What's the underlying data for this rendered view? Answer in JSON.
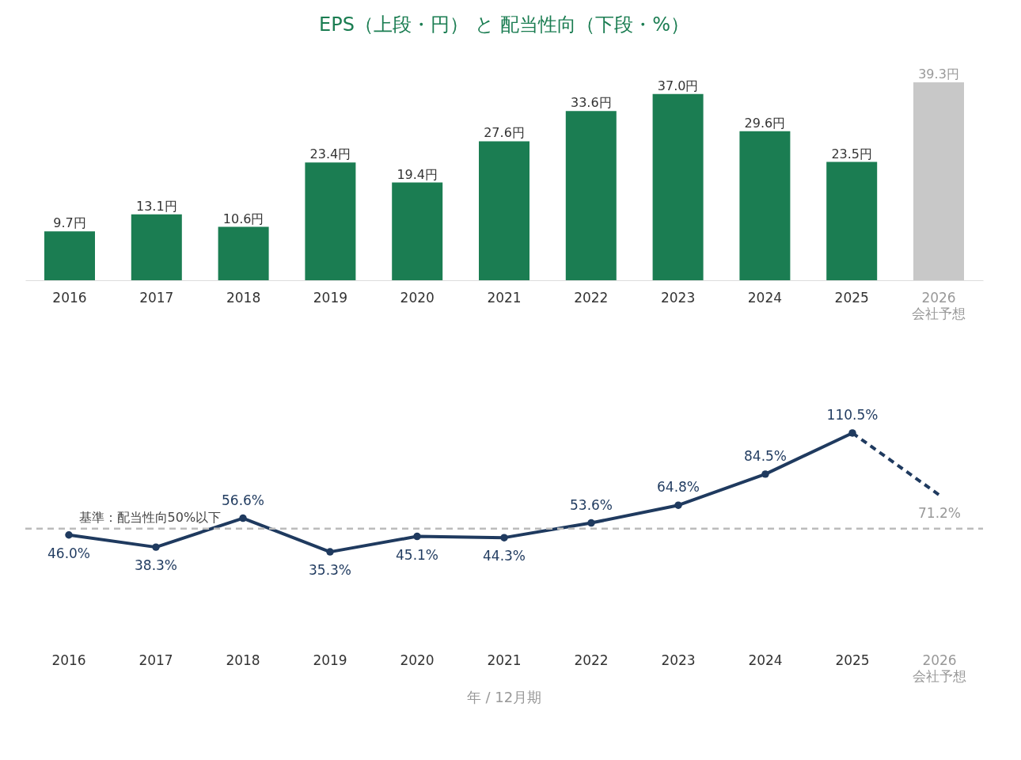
{
  "chart_data": [
    {
      "type": "bar",
      "title": "EPS（上段・円） と 配当性向（下段・%）",
      "categories": [
        "2016",
        "2017",
        "2018",
        "2019",
        "2020",
        "2021",
        "2022",
        "2023",
        "2024",
        "2025",
        "2026\n会社予想"
      ],
      "values": [
        9.7,
        13.1,
        10.6,
        23.4,
        19.4,
        27.6,
        33.6,
        37.0,
        29.6,
        23.5,
        39.3
      ],
      "value_labels": [
        "9.7円",
        "13.1円",
        "10.6円",
        "23.4円",
        "19.4円",
        "27.6円",
        "33.6円",
        "37.0円",
        "29.6円",
        "23.5円",
        "39.3円"
      ],
      "colors": [
        "#1b7d52",
        "#1b7d52",
        "#1b7d52",
        "#1b7d52",
        "#1b7d52",
        "#1b7d52",
        "#1b7d52",
        "#1b7d52",
        "#1b7d52",
        "#1b7d52",
        "#c8c8c8"
      ]
    },
    {
      "type": "line",
      "xlabel": "年 / 12月期",
      "categories": [
        "2016",
        "2017",
        "2018",
        "2019",
        "2020",
        "2021",
        "2022",
        "2023",
        "2024",
        "2025",
        "2026\n会社予想"
      ],
      "series": [
        {
          "color": "#1f3a5f",
          "marker": "circle",
          "line_style": "solid",
          "values": [
            46.0,
            38.3,
            56.6,
            35.3,
            45.1,
            44.3,
            53.6,
            64.8,
            84.5,
            110.5,
            null
          ],
          "value_labels": [
            "46.0%",
            "38.3%",
            "56.6%",
            "35.3%",
            "45.1%",
            "44.3%",
            "53.6%",
            "64.8%",
            "84.5%",
            "110.5%",
            null
          ]
        },
        {
          "color": "#1f3a5f",
          "marker": "none",
          "line_style": "dashed",
          "values": [
            null,
            null,
            null,
            null,
            null,
            null,
            null,
            null,
            null,
            110.5,
            71.2
          ],
          "value_labels": [
            null,
            null,
            null,
            null,
            null,
            null,
            null,
            null,
            null,
            null,
            "71.2%"
          ]
        }
      ],
      "ref_lines": [
        {
          "axis": "y",
          "value": 50,
          "label": "基準：配当性向50%以下",
          "color": "#bbbbbb",
          "line_style": "dashed"
        }
      ]
    }
  ]
}
